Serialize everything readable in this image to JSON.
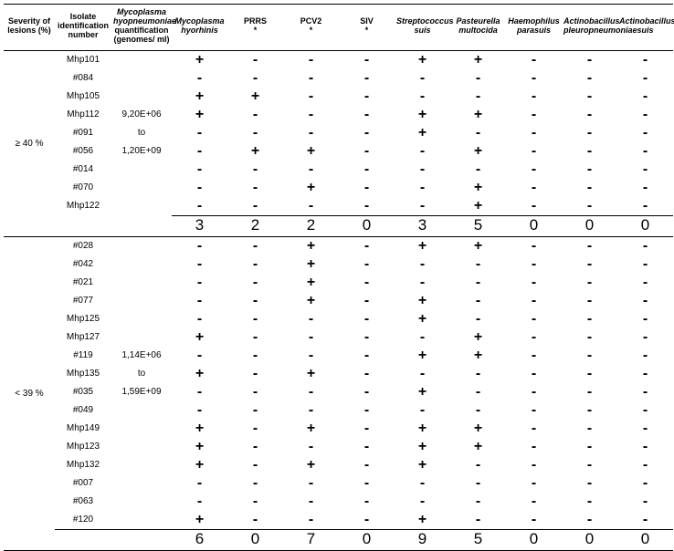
{
  "headers": {
    "severity": "Severity of lesions (%)",
    "isolate": "Isolate identification number",
    "quant": "Mycoplasma hyopneumoniae quantification (genomes/ ml)",
    "pathogens": [
      {
        "label": "Mycoplasma hyorhinis",
        "italic": true
      },
      {
        "label": "PRRS *",
        "italic": false
      },
      {
        "label": "PCV2 *",
        "italic": false
      },
      {
        "label": "SIV *",
        "italic": false
      },
      {
        "label": "Streptococcus suis",
        "italic": true
      },
      {
        "label": "Pasteurella multocida",
        "italic": true
      },
      {
        "label": "Haemophilus parasuis",
        "italic": true
      },
      {
        "label": "Actinobacillus pleuropneumoniae",
        "italic": true
      },
      {
        "label": "Actinobacillus suis",
        "italic": true
      }
    ]
  },
  "groups": [
    {
      "severity": "≥ 40 %",
      "quant": [
        "9,20E+06",
        "to",
        "1,20E+09"
      ],
      "quant_start": 3,
      "rows": [
        {
          "id": "Mhp101",
          "v": [
            "+",
            "-",
            "-",
            "-",
            "+",
            "+",
            "-",
            "-",
            "-"
          ]
        },
        {
          "id": "#084",
          "v": [
            "-",
            "-",
            "-",
            "-",
            "-",
            "-",
            "-",
            "-",
            "-"
          ]
        },
        {
          "id": "Mhp105",
          "v": [
            "+",
            "+",
            "-",
            "-",
            "-",
            "-",
            "-",
            "-",
            "-"
          ]
        },
        {
          "id": "Mhp112",
          "v": [
            "+",
            "-",
            "-",
            "-",
            "+",
            "+",
            "-",
            "-",
            "-"
          ]
        },
        {
          "id": "#091",
          "v": [
            "-",
            "-",
            "-",
            "-",
            "+",
            "-",
            "-",
            "-",
            "-"
          ]
        },
        {
          "id": "#056",
          "v": [
            "-",
            "+",
            "+",
            "-",
            "-",
            "+",
            "-",
            "-",
            "-"
          ]
        },
        {
          "id": "#014",
          "v": [
            "-",
            "-",
            "-",
            "-",
            "-",
            "-",
            "-",
            "-",
            "-"
          ]
        },
        {
          "id": "#070",
          "v": [
            "-",
            "-",
            "+",
            "-",
            "-",
            "+",
            "-",
            "-",
            "-"
          ]
        },
        {
          "id": "Mhp122",
          "v": [
            "-",
            "-",
            "-",
            "-",
            "-",
            "+",
            "-",
            "-",
            "-"
          ]
        }
      ],
      "sum": [
        "3",
        "2",
        "2",
        "0",
        "3",
        "5",
        "0",
        "0",
        "0"
      ],
      "sum_border_full": false
    },
    {
      "severity": "< 39 %",
      "quant": [
        "1,14E+06",
        "to",
        "1,59E+09"
      ],
      "quant_start": 6,
      "rows": [
        {
          "id": "#028",
          "v": [
            "-",
            "-",
            "+",
            "-",
            "+",
            "+",
            "-",
            "-",
            "-"
          ]
        },
        {
          "id": "#042",
          "v": [
            "-",
            "-",
            "+",
            "-",
            "-",
            "-",
            "-",
            "-",
            "-"
          ]
        },
        {
          "id": "#021",
          "v": [
            "-",
            "-",
            "+",
            "-",
            "-",
            "-",
            "-",
            "-",
            "-"
          ]
        },
        {
          "id": "#077",
          "v": [
            "-",
            "-",
            "+",
            "-",
            "+",
            "-",
            "-",
            "-",
            "-"
          ]
        },
        {
          "id": "Mhp125",
          "v": [
            "-",
            "-",
            "-",
            "-",
            "+",
            "-",
            "-",
            "-",
            "-"
          ]
        },
        {
          "id": "Mhp127",
          "v": [
            "+",
            "-",
            "-",
            "-",
            "-",
            "+",
            "-",
            "-",
            "-"
          ]
        },
        {
          "id": "#119",
          "v": [
            "-",
            "-",
            "-",
            "-",
            "+",
            "+",
            "-",
            "-",
            "-"
          ]
        },
        {
          "id": "Mhp135",
          "v": [
            "+",
            "-",
            "+",
            "-",
            "-",
            "-",
            "-",
            "-",
            "-"
          ]
        },
        {
          "id": "#035",
          "v": [
            "-",
            "-",
            "-",
            "-",
            "+",
            "-",
            "-",
            "-",
            "-"
          ]
        },
        {
          "id": "#049",
          "v": [
            "-",
            "-",
            "-",
            "-",
            "-",
            "-",
            "-",
            "-",
            "-"
          ]
        },
        {
          "id": "Mhp149",
          "v": [
            "+",
            "-",
            "+",
            "-",
            "+",
            "+",
            "-",
            "-",
            "-"
          ]
        },
        {
          "id": "Mhp123",
          "v": [
            "+",
            "-",
            "-",
            "-",
            "+",
            "+",
            "-",
            "-",
            "-"
          ]
        },
        {
          "id": "Mhp132",
          "v": [
            "+",
            "-",
            "+",
            "-",
            "+",
            "-",
            "-",
            "-",
            "-"
          ]
        },
        {
          "id": "#007",
          "v": [
            "-",
            "-",
            "-",
            "-",
            "-",
            "-",
            "-",
            "-",
            "-"
          ]
        },
        {
          "id": "#063",
          "v": [
            "-",
            "-",
            "-",
            "-",
            "-",
            "-",
            "-",
            "-",
            "-"
          ]
        },
        {
          "id": "#120",
          "v": [
            "+",
            "-",
            "-",
            "-",
            "+",
            "-",
            "-",
            "-",
            "-"
          ]
        }
      ],
      "sum": [
        "6",
        "0",
        "7",
        "0",
        "9",
        "5",
        "0",
        "0",
        "0"
      ],
      "sum_border_full": true
    }
  ]
}
